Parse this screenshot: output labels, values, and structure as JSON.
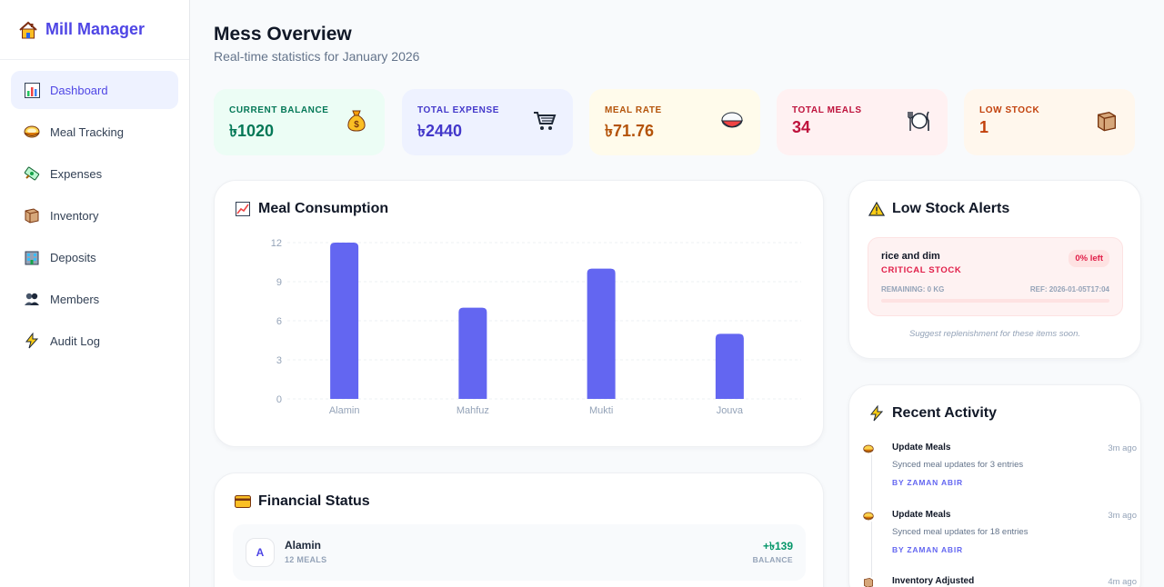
{
  "brand": {
    "title": "Mill Manager",
    "icon": "house-icon"
  },
  "sidebar": {
    "items": [
      {
        "label": "Dashboard",
        "icon": "bar-chart-icon",
        "active": true
      },
      {
        "label": "Meal Tracking",
        "icon": "food-bowl-icon"
      },
      {
        "label": "Expenses",
        "icon": "money-icon"
      },
      {
        "label": "Inventory",
        "icon": "box-icon"
      },
      {
        "label": "Deposits",
        "icon": "bank-icon"
      },
      {
        "label": "Members",
        "icon": "people-icon"
      },
      {
        "label": "Audit Log",
        "icon": "lightning-icon"
      }
    ]
  },
  "header": {
    "title": "Mess Overview",
    "subtitle": "Real-time statistics for January 2026"
  },
  "stats": [
    {
      "label": "Current Balance",
      "value": "৳1020",
      "icon": "money-bag-icon",
      "bg": "#ecfdf5",
      "color": "#047857"
    },
    {
      "label": "Total Expense",
      "value": "৳2440",
      "icon": "cart-icon",
      "bg": "#eef2ff",
      "color": "#4338ca"
    },
    {
      "label": "Meal Rate",
      "value": "৳71.76",
      "icon": "rice-bowl-icon",
      "bg": "#fffbeb",
      "color": "#b45309"
    },
    {
      "label": "Total Meals",
      "value": "34",
      "icon": "cutlery-icon",
      "bg": "#fff1f2",
      "color": "#be123c"
    },
    {
      "label": "Low Stock",
      "value": "1",
      "icon": "box-icon",
      "bg": "#fff7ed",
      "color": "#c2410c"
    }
  ],
  "meal_chart": {
    "title": "Meal Consumption",
    "icon": "chart-trend-icon"
  },
  "chart_data": {
    "type": "bar",
    "categories": [
      "Alamin",
      "Mahfuz",
      "Mukti",
      "Jouva"
    ],
    "values": [
      12,
      7,
      10,
      5
    ],
    "yticks": [
      "0",
      "3",
      "6",
      "9",
      "12"
    ],
    "ylim": [
      0,
      12
    ],
    "grid": true,
    "color": "#6366f1"
  },
  "low_stock": {
    "title": "Low Stock Alerts",
    "icon": "warning-icon",
    "item": {
      "name": "rice and dim",
      "status": "CRITICAL STOCK",
      "pill": "0% left",
      "remaining": "REMAINING: 0 KG",
      "ref": "REF: 2026-01-05T17:04",
      "percent_left": 0
    },
    "hint": "Suggest replenishment for these items soon."
  },
  "activity": {
    "title": "Recent Activity",
    "icon": "lightning-icon",
    "items": [
      {
        "title": "Update Meals",
        "time": "3m ago",
        "desc": "Synced meal updates for 3 entries",
        "by": "BY ZAMAN ABIR",
        "icon": "food-bowl-icon"
      },
      {
        "title": "Update Meals",
        "time": "3m ago",
        "desc": "Synced meal updates for 18 entries",
        "by": "BY ZAMAN ABIR",
        "icon": "food-bowl-icon"
      },
      {
        "title": "Inventory Adjusted",
        "time": "4m ago",
        "icon": "box-icon"
      }
    ]
  },
  "financial": {
    "title": "Financial Status",
    "icon": "credit-card-icon",
    "rows": [
      {
        "initial": "A",
        "name": "Alamin",
        "meals": "12 MEALS",
        "amount": "+৳139",
        "label": "BALANCE"
      }
    ]
  }
}
